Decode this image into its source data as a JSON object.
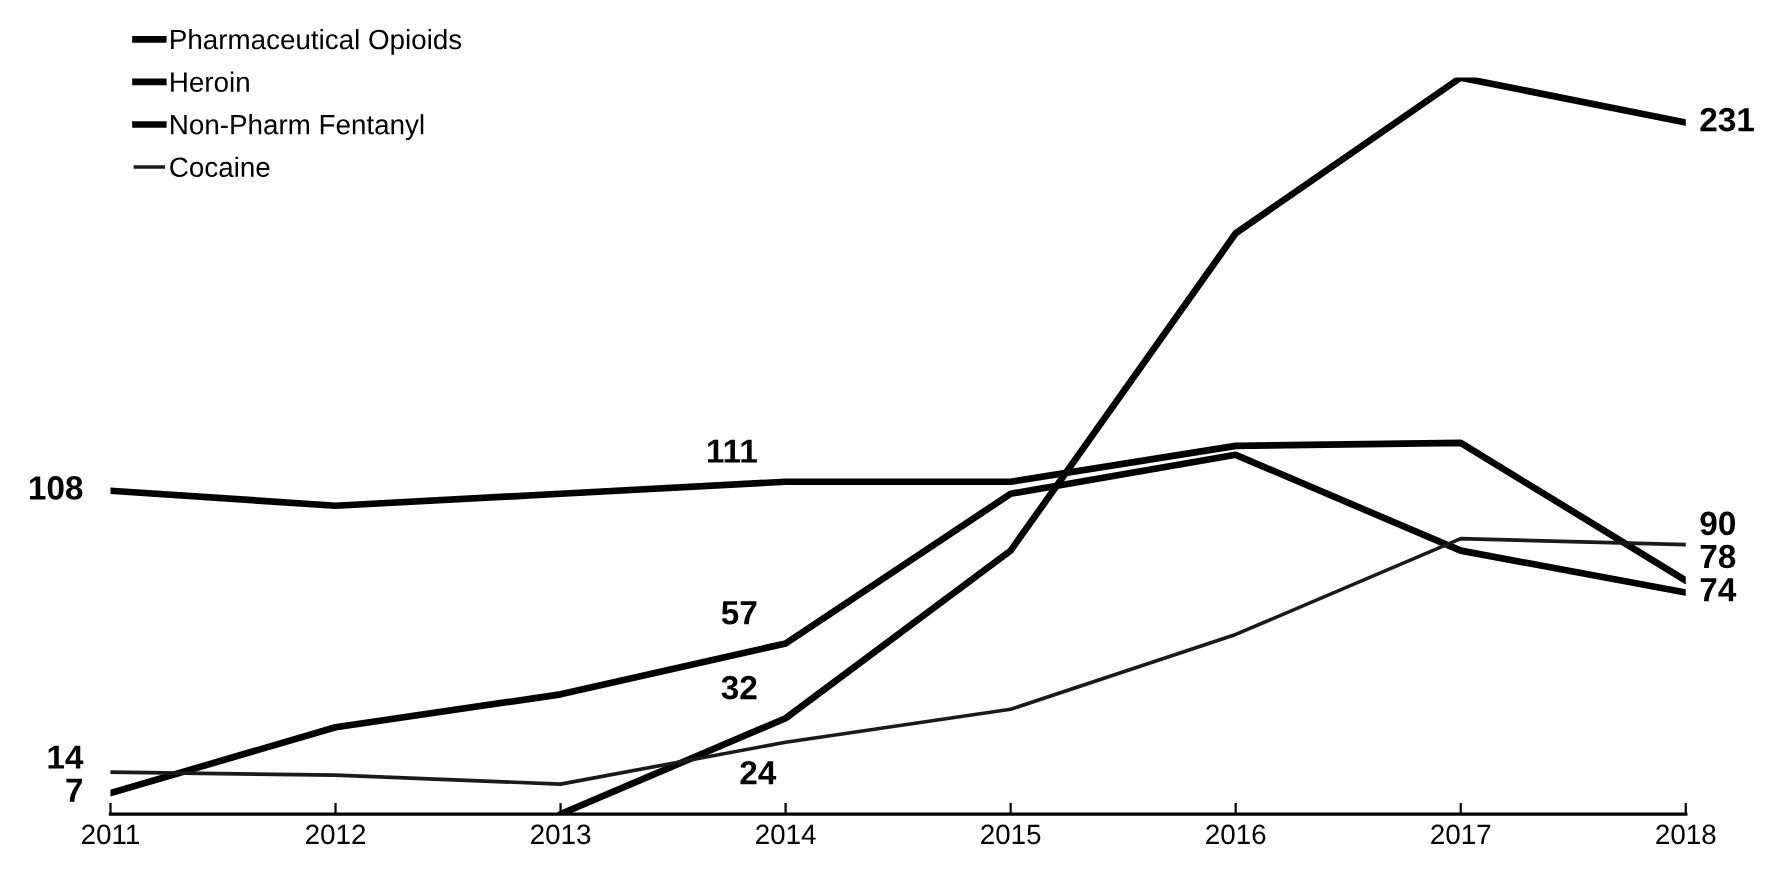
{
  "chart_data": {
    "type": "line",
    "categories": [
      "2011",
      "2012",
      "2013",
      "2014",
      "2015",
      "2016",
      "2017",
      "2018"
    ],
    "tick_labels": "x",
    "grid": false,
    "legend": "top left",
    "marker": "none",
    "line_style": "solid",
    "series": [
      {
        "name": "Pharmaceutical Opioids",
        "color": "#000000",
        "values": [
          108,
          103,
          107,
          111,
          111,
          123,
          124,
          78
        ],
        "value_labels": [
          "108",
          null,
          null,
          "111",
          null,
          null,
          null,
          "78"
        ]
      },
      {
        "name": "Heroin",
        "color": "#000000",
        "values": [
          7,
          29,
          40,
          57,
          107,
          120,
          88,
          74
        ],
        "value_labels": [
          "7",
          null,
          null,
          "57",
          null,
          null,
          null,
          "74"
        ]
      },
      {
        "name": "Non-Pharm Fentanyl",
        "color": "#000000",
        "values": [
          null,
          null,
          0,
          32,
          88,
          194,
          246,
          231
        ],
        "value_labels": [
          null,
          null,
          null,
          "32",
          null,
          null,
          null,
          "231"
        ]
      },
      {
        "name": "Cocaine",
        "color": "#1a1a1a",
        "values": [
          14,
          13,
          10,
          24,
          35,
          60,
          92,
          90
        ],
        "value_labels": [
          "14",
          null,
          null,
          "24",
          null,
          null,
          null,
          "90"
        ]
      }
    ]
  }
}
